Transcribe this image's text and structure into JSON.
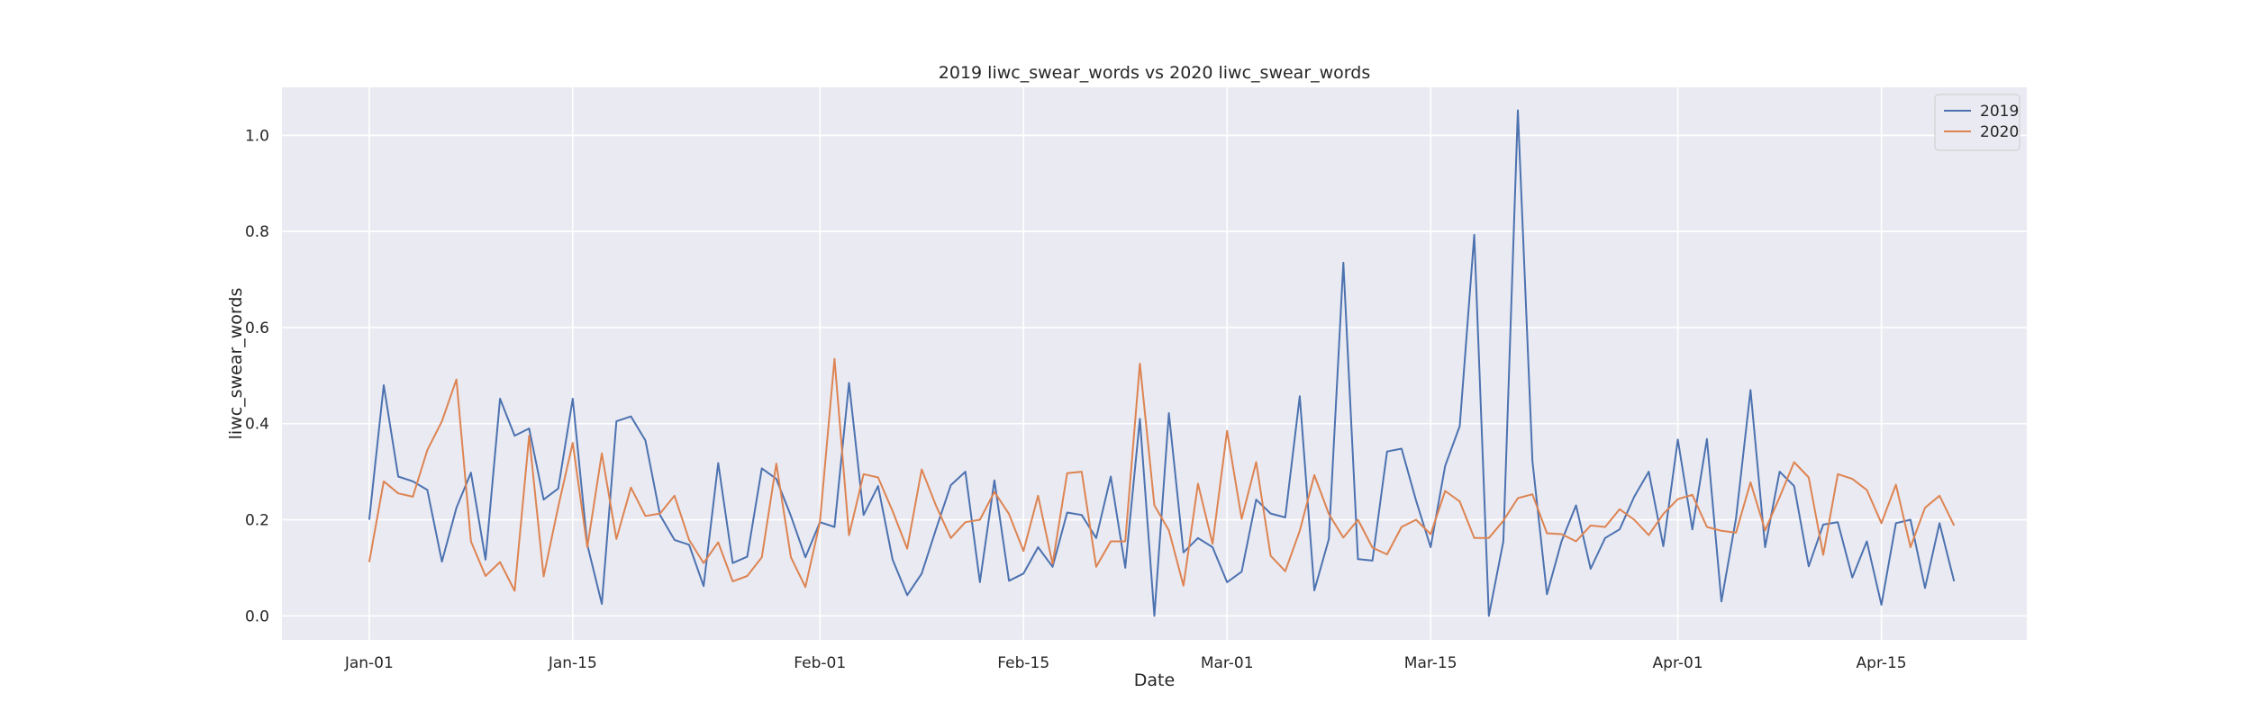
{
  "chart_data": {
    "type": "line",
    "title": "2019 liwc_swear_words vs 2020 liwc_swear_words",
    "xlabel": "Date",
    "ylabel": "liwc_swear_words",
    "x_start": "Jan-01",
    "x_tick_labels": [
      {
        "label": "Jan-01",
        "value": "01-01"
      },
      {
        "label": "Jan-15",
        "value": "01-15"
      },
      {
        "label": "Feb-01",
        "value": "02-01"
      },
      {
        "label": "Feb-15",
        "value": "02-15"
      },
      {
        "label": "Mar-01",
        "value": "03-01"
      },
      {
        "label": "Mar-15",
        "value": "03-15"
      },
      {
        "label": "Apr-01",
        "value": "04-01"
      },
      {
        "label": "Apr-15",
        "value": "04-15"
      }
    ],
    "y_ticks": [
      "0.0",
      "0.2",
      "0.4",
      "0.6",
      "0.8",
      "1.0"
    ],
    "ylim": [
      -0.05,
      1.1
    ],
    "xlim": [
      "12-26",
      "04-25"
    ],
    "grid": true,
    "legend_position": "top-right",
    "series": [
      {
        "name": "2019",
        "color": "#4c72b0",
        "values": [
          0.2,
          0.48,
          0.29,
          0.28,
          0.262,
          0.113,
          0.225,
          0.298,
          0.117,
          0.452,
          0.375,
          0.39,
          0.242,
          0.265,
          0.452,
          0.148,
          0.025,
          0.405,
          0.415,
          0.365,
          0.21,
          0.158,
          0.148,
          0.062,
          0.318,
          0.11,
          0.123,
          0.307,
          0.285,
          0.208,
          0.122,
          0.195,
          0.185,
          0.485,
          0.21,
          0.27,
          0.117,
          0.043,
          0.088,
          0.182,
          0.272,
          0.3,
          0.07,
          0.282,
          0.073,
          0.088,
          0.143,
          0.102,
          0.215,
          0.21,
          0.162,
          0.29,
          0.1,
          0.41,
          0.0,
          0.422,
          0.132,
          0.162,
          0.143,
          0.07,
          0.092,
          0.242,
          0.213,
          0.205,
          0.457,
          0.053,
          0.16,
          0.735,
          0.118,
          0.115,
          0.342,
          0.348,
          0.24,
          0.143,
          0.312,
          0.395,
          0.793,
          0.0,
          0.155,
          1.052,
          0.322,
          0.045,
          0.155,
          0.23,
          0.098,
          0.162,
          0.18,
          0.248,
          0.3,
          0.145,
          0.367,
          0.18,
          0.368,
          0.03,
          0.203,
          0.47,
          0.143,
          0.3,
          0.27,
          0.103,
          0.19,
          0.195,
          0.08,
          0.155,
          0.023,
          0.193,
          0.2,
          0.058,
          0.193,
          0.072
        ]
      },
      {
        "name": "2020",
        "color": "#dd8452",
        "values": [
          0.112,
          0.28,
          0.255,
          0.248,
          0.345,
          0.405,
          0.492,
          0.155,
          0.083,
          0.112,
          0.052,
          0.375,
          0.082,
          0.227,
          0.36,
          0.143,
          0.338,
          0.16,
          0.267,
          0.208,
          0.213,
          0.25,
          0.158,
          0.11,
          0.153,
          0.072,
          0.083,
          0.122,
          0.317,
          0.122,
          0.06,
          0.195,
          0.535,
          0.168,
          0.295,
          0.288,
          0.218,
          0.14,
          0.305,
          0.228,
          0.162,
          0.195,
          0.2,
          0.258,
          0.212,
          0.135,
          0.25,
          0.108,
          0.297,
          0.3,
          0.102,
          0.155,
          0.155,
          0.525,
          0.23,
          0.178,
          0.063,
          0.275,
          0.15,
          0.385,
          0.202,
          0.32,
          0.125,
          0.093,
          0.177,
          0.293,
          0.212,
          0.163,
          0.2,
          0.142,
          0.128,
          0.185,
          0.2,
          0.17,
          0.26,
          0.238,
          0.162,
          0.162,
          0.198,
          0.245,
          0.253,
          0.172,
          0.17,
          0.155,
          0.188,
          0.185,
          0.222,
          0.2,
          0.168,
          0.212,
          0.243,
          0.252,
          0.185,
          0.177,
          0.173,
          0.278,
          0.178,
          0.247,
          0.32,
          0.288,
          0.127,
          0.295,
          0.285,
          0.262,
          0.193,
          0.273,
          0.143,
          0.225,
          0.25,
          0.188
        ]
      }
    ]
  }
}
